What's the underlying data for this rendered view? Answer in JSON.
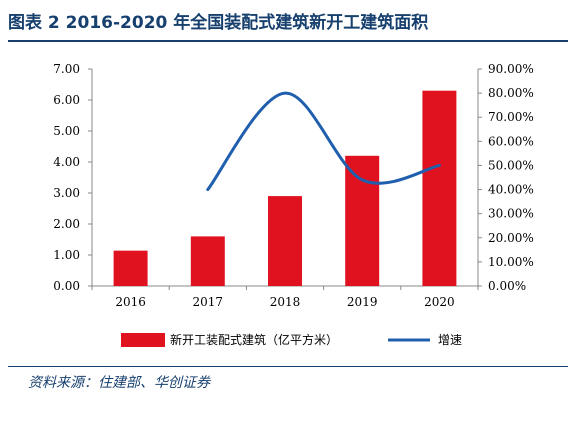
{
  "title": "图表 2  2016-2020 年全国装配式建筑新开工建筑面积",
  "source": "资料来源：住建部、华创证券",
  "colors": {
    "bar": "#e0121f",
    "line": "#1f5fae",
    "title": "#17406f"
  },
  "chart_data": {
    "type": "bar+line",
    "categories": [
      "2016",
      "2017",
      "2018",
      "2019",
      "2020"
    ],
    "series": [
      {
        "name": "新开工装配式建筑（亿平方米）",
        "type": "bar",
        "axis": "left",
        "values": [
          1.14,
          1.6,
          2.9,
          4.2,
          6.3
        ]
      },
      {
        "name": "增速",
        "type": "line",
        "axis": "right",
        "values": [
          null,
          40.0,
          80.0,
          44.0,
          50.0
        ]
      }
    ],
    "y_left": {
      "lim": [
        0,
        7
      ],
      "ticks": [
        "0.00",
        "1.00",
        "2.00",
        "3.00",
        "4.00",
        "5.00",
        "6.00",
        "7.00"
      ]
    },
    "y_right": {
      "lim": [
        0,
        90
      ],
      "ticks": [
        "0.00%",
        "10.00%",
        "20.00%",
        "30.00%",
        "40.00%",
        "50.00%",
        "60.00%",
        "70.00%",
        "80.00%",
        "90.00%"
      ]
    },
    "grid": false,
    "legend": "bottom"
  }
}
